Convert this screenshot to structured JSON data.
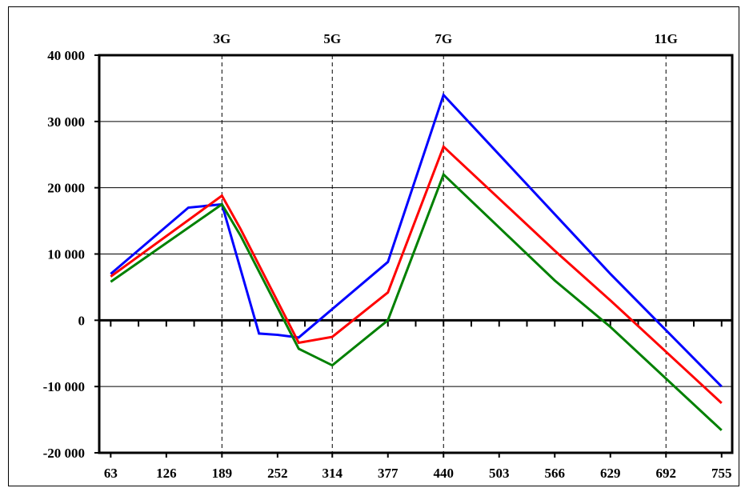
{
  "chart_data": {
    "type": "line",
    "title": "",
    "xlabel": "",
    "ylabel": "",
    "x_ticks": [
      "63",
      "126",
      "189",
      "252",
      "314",
      "377",
      "440",
      "503",
      "566",
      "629",
      "692",
      "755"
    ],
    "y_ticks": [
      "40 000",
      "30 000",
      "20 000",
      "10 000",
      "0",
      "-10 000",
      "-20 000"
    ],
    "ylim": [
      -20000,
      40000
    ],
    "xlim": [
      50,
      767
    ],
    "grid": "horizontal",
    "harmonic_markers": [
      {
        "label": "3G",
        "x": 189
      },
      {
        "label": "5G",
        "x": 314
      },
      {
        "label": "7G",
        "x": 440
      },
      {
        "label": "11G",
        "x": 692
      }
    ],
    "series": [
      {
        "color": "#0000ff",
        "x": [
          63,
          151,
          189,
          231,
          252,
          276,
          377,
          440,
          566,
          629,
          755
        ],
        "y": [
          7000,
          17000,
          17500,
          -2000,
          -2200,
          -2600,
          8800,
          34000,
          16000,
          7000,
          -10000
        ]
      },
      {
        "color": "#ff0000",
        "x": [
          63,
          189,
          210,
          276,
          314,
          377,
          440,
          566,
          629,
          755
        ],
        "y": [
          6600,
          18800,
          13800,
          -3400,
          -2500,
          4200,
          26200,
          10500,
          3000,
          -12500
        ]
      },
      {
        "color": "#008000",
        "x": [
          63,
          189,
          210,
          276,
          314,
          377,
          440,
          566,
          629,
          755
        ],
        "y": [
          5800,
          17500,
          12800,
          -4300,
          -6800,
          0,
          22000,
          6000,
          -1000,
          -16600
        ]
      }
    ]
  }
}
